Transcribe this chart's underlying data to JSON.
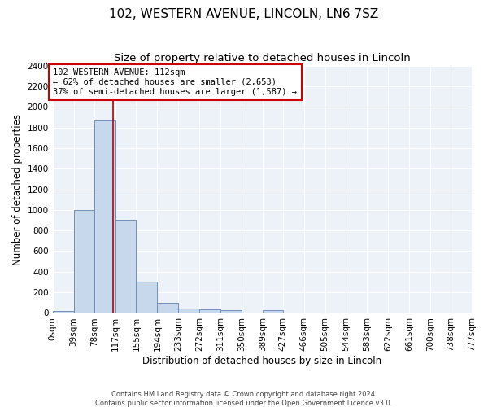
{
  "title": "102, WESTERN AVENUE, LINCOLN, LN6 7SZ",
  "subtitle": "Size of property relative to detached houses in Lincoln",
  "xlabel": "Distribution of detached houses by size in Lincoln",
  "ylabel": "Number of detached properties",
  "bin_edges": [
    0,
    39,
    78,
    117,
    155,
    194,
    233,
    272,
    311,
    350,
    389,
    427,
    466,
    505,
    544,
    583,
    622,
    661,
    700,
    738,
    777
  ],
  "bin_labels": [
    "0sqm",
    "39sqm",
    "78sqm",
    "117sqm",
    "155sqm",
    "194sqm",
    "233sqm",
    "272sqm",
    "311sqm",
    "350sqm",
    "389sqm",
    "427sqm",
    "466sqm",
    "505sqm",
    "544sqm",
    "583sqm",
    "622sqm",
    "661sqm",
    "700sqm",
    "738sqm",
    "777sqm"
  ],
  "bar_heights": [
    20,
    1000,
    1870,
    900,
    305,
    100,
    45,
    35,
    25,
    0,
    25,
    0,
    0,
    0,
    0,
    0,
    0,
    0,
    0,
    0
  ],
  "bar_color": "#c8d8ec",
  "bar_edge_color": "#7090b8",
  "bar_edge_width": 0.7,
  "ylim": [
    0,
    2400
  ],
  "yticks": [
    0,
    200,
    400,
    600,
    800,
    1000,
    1200,
    1400,
    1600,
    1800,
    2000,
    2200,
    2400
  ],
  "property_line_x": 112,
  "property_line_color": "#bb0000",
  "annotation_text": "102 WESTERN AVENUE: 112sqm\n← 62% of detached houses are smaller (2,653)\n37% of semi-detached houses are larger (1,587) →",
  "annotation_box_color": "#ffffff",
  "annotation_box_edge": "#cc0000",
  "background_color": "#edf2f8",
  "grid_color": "#ffffff",
  "footer_text": "Contains HM Land Registry data © Crown copyright and database right 2024.\nContains public sector information licensed under the Open Government Licence v3.0.",
  "title_fontsize": 11,
  "subtitle_fontsize": 9.5,
  "axis_label_fontsize": 8.5,
  "tick_fontsize": 7.5,
  "annotation_fontsize": 7.5
}
